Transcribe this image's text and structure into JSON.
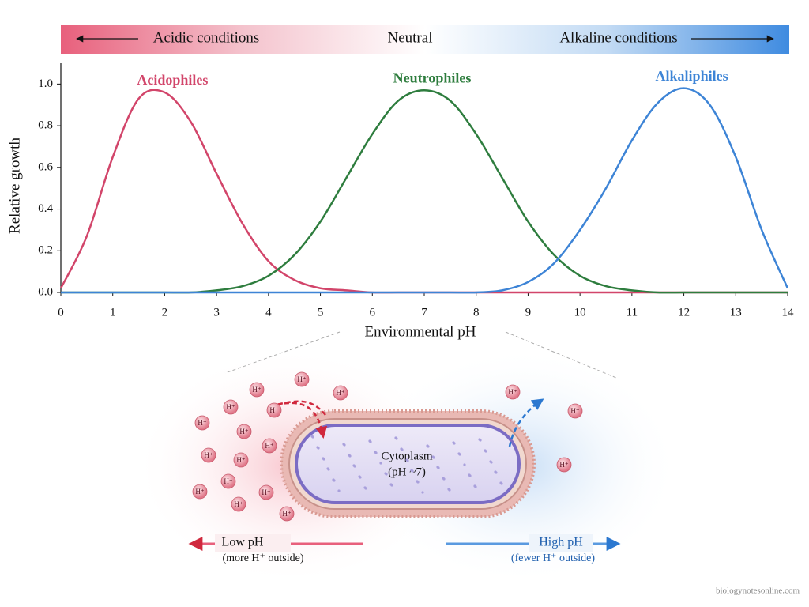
{
  "chart_data": {
    "type": "line",
    "banner": {
      "left": "Acidic conditions",
      "center": "Neutral",
      "right": "Alkaline conditions"
    },
    "x": [
      0,
      0.5,
      1,
      1.5,
      2,
      2.5,
      3,
      3.5,
      4,
      4.5,
      5,
      5.5,
      6,
      6.5,
      7,
      7.5,
      8,
      8.5,
      9,
      9.5,
      10,
      10.5,
      11,
      11.5,
      12,
      12.5,
      13,
      13.5,
      14
    ],
    "series": [
      {
        "name": "Acidophiles",
        "color": "#d2456a",
        "values": [
          0.02,
          0.27,
          0.65,
          0.93,
          0.96,
          0.82,
          0.57,
          0.33,
          0.15,
          0.06,
          0.02,
          0.01,
          0,
          0,
          0,
          0,
          0,
          0,
          0,
          0,
          0,
          0,
          0,
          0,
          0,
          0,
          0,
          0,
          0
        ]
      },
      {
        "name": "Neutrophiles",
        "color": "#2e7d3e",
        "values": [
          0,
          0,
          0,
          0,
          0,
          0,
          0.01,
          0.03,
          0.08,
          0.18,
          0.34,
          0.55,
          0.76,
          0.92,
          0.97,
          0.92,
          0.76,
          0.55,
          0.34,
          0.18,
          0.08,
          0.03,
          0.01,
          0,
          0,
          0,
          0,
          0,
          0
        ]
      },
      {
        "name": "Alkaliphiles",
        "color": "#3d84d6",
        "values": [
          0,
          0,
          0,
          0,
          0,
          0,
          0,
          0,
          0,
          0,
          0,
          0,
          0,
          0,
          0,
          0,
          0,
          0.01,
          0.05,
          0.14,
          0.3,
          0.5,
          0.73,
          0.91,
          0.98,
          0.9,
          0.65,
          0.3,
          0.02
        ]
      }
    ],
    "x_label": "Environmental pH",
    "y_label": "Relative growth",
    "xlim": [
      0,
      14
    ],
    "xticks": [
      0,
      1,
      2,
      3,
      4,
      5,
      6,
      7,
      8,
      9,
      10,
      11,
      12,
      13,
      14
    ],
    "ylim": [
      0,
      1.1
    ],
    "yticks": [
      {
        "value": 0,
        "label": "0.0"
      },
      {
        "value": 0.2,
        "label": "0.2"
      },
      {
        "value": 0.4,
        "label": "0.4"
      },
      {
        "value": 0.6,
        "label": "0.6"
      },
      {
        "value": 0.8,
        "label": "0.8"
      },
      {
        "value": 1,
        "label": "1.0"
      }
    ],
    "grid": false
  },
  "illustration": {
    "ion_label": "H⁺",
    "cytoplasm": "Cytoplasm",
    "cytoplasm_ph": "(pH ~7)",
    "low_ph": "Low pH",
    "low_ph_note": "(more H⁺ outside)",
    "high_ph": "High pH",
    "high_ph_note": "(fewer H⁺ outside)"
  },
  "watermark": "biologynotesonline.com"
}
